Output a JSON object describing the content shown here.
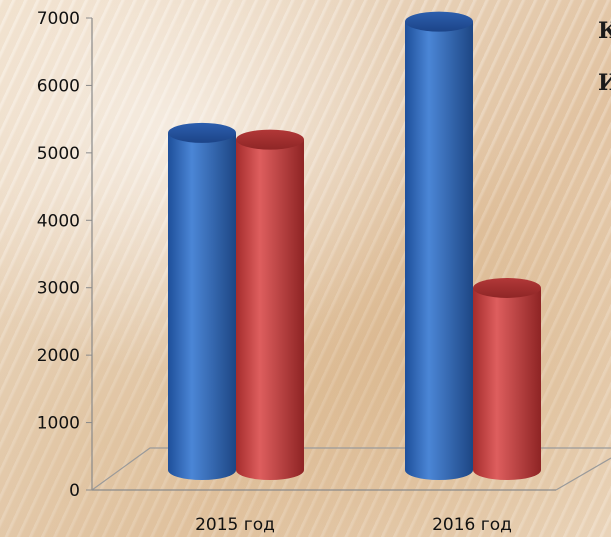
{
  "chart_data": {
    "type": "bar",
    "style": "3d-cylinder",
    "categories": [
      "2015 год",
      "2016 год"
    ],
    "series": [
      {
        "color": "#3a6fc0",
        "values": [
          5000,
          6650
        ]
      },
      {
        "color": "#c84545",
        "values": [
          4900,
          2700
        ]
      }
    ],
    "yticks": [
      "0",
      "1000",
      "2000",
      "3000",
      "4000",
      "5000",
      "6000",
      "7000"
    ],
    "ylim": [
      0,
      7000
    ],
    "grid": false,
    "legend": "none",
    "title": "",
    "xlabel": "",
    "ylabel": ""
  },
  "side_text": [
    "К",
    "И"
  ]
}
